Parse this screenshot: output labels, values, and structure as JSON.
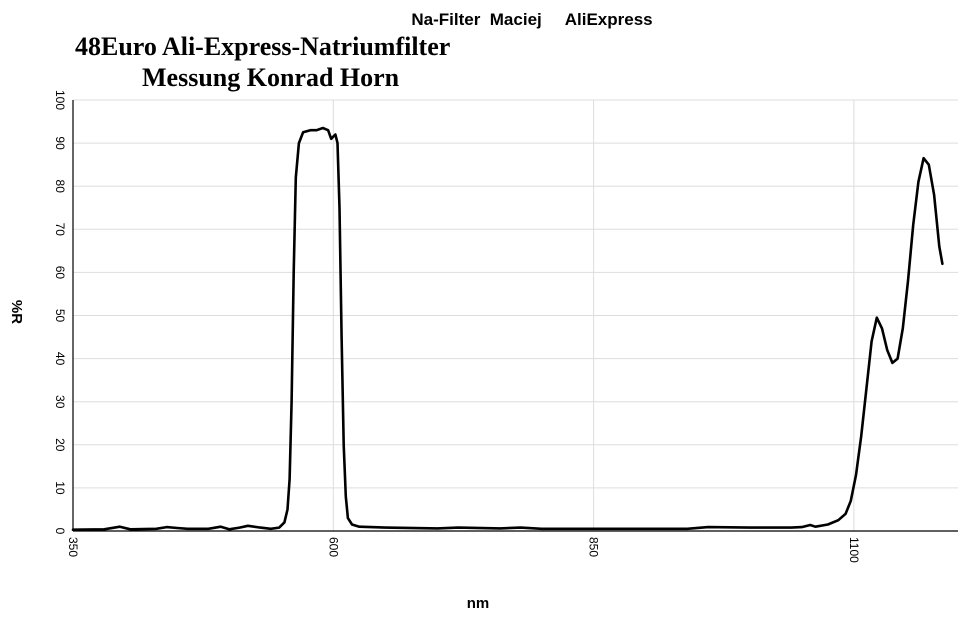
{
  "chart_data": {
    "type": "line",
    "title": "Na-Filter  Maciej     AliExpress",
    "subtitle_line1": "48Euro Ali-Express-Natriumfilter",
    "subtitle_line2": "Messung Konrad Horn",
    "xlabel": "nm",
    "ylabel": "%R",
    "xlim": [
      350,
      1200
    ],
    "ylim": [
      0,
      100
    ],
    "x_ticks": [
      350,
      600,
      850,
      1100
    ],
    "y_ticks": [
      0,
      10,
      20,
      30,
      40,
      50,
      60,
      70,
      80,
      90,
      100
    ],
    "grid": true,
    "series": [
      {
        "values": [
          [
            350,
            0.3
          ],
          [
            380,
            0.4
          ],
          [
            395,
            1.0
          ],
          [
            405,
            0.4
          ],
          [
            430,
            0.5
          ],
          [
            440,
            0.9
          ],
          [
            450,
            0.7
          ],
          [
            460,
            0.5
          ],
          [
            480,
            0.5
          ],
          [
            492,
            1.0
          ],
          [
            500,
            0.4
          ],
          [
            510,
            0.8
          ],
          [
            518,
            1.2
          ],
          [
            530,
            0.8
          ],
          [
            540,
            0.5
          ],
          [
            548,
            0.8
          ],
          [
            553,
            2
          ],
          [
            556,
            5
          ],
          [
            558,
            12
          ],
          [
            560,
            30
          ],
          [
            562,
            60
          ],
          [
            564,
            82
          ],
          [
            567,
            90
          ],
          [
            571,
            92.5
          ],
          [
            578,
            93
          ],
          [
            584,
            93
          ],
          [
            590,
            93.5
          ],
          [
            595,
            93
          ],
          [
            598,
            91
          ],
          [
            600,
            91.5
          ],
          [
            602,
            92
          ],
          [
            604,
            90
          ],
          [
            606,
            75
          ],
          [
            608,
            45
          ],
          [
            610,
            20
          ],
          [
            612,
            8
          ],
          [
            614,
            3
          ],
          [
            618,
            1.5
          ],
          [
            625,
            1.0
          ],
          [
            650,
            0.8
          ],
          [
            700,
            0.6
          ],
          [
            720,
            0.8
          ],
          [
            760,
            0.6
          ],
          [
            780,
            0.8
          ],
          [
            800,
            0.5
          ],
          [
            850,
            0.5
          ],
          [
            900,
            0.5
          ],
          [
            940,
            0.5
          ],
          [
            960,
            0.9
          ],
          [
            1000,
            0.8
          ],
          [
            1040,
            0.8
          ],
          [
            1050,
            0.9
          ],
          [
            1058,
            1.4
          ],
          [
            1063,
            1.0
          ],
          [
            1075,
            1.5
          ],
          [
            1085,
            2.5
          ],
          [
            1092,
            4
          ],
          [
            1097,
            7
          ],
          [
            1102,
            13
          ],
          [
            1107,
            22
          ],
          [
            1112,
            33
          ],
          [
            1117,
            44
          ],
          [
            1122,
            49.5
          ],
          [
            1127,
            47
          ],
          [
            1132,
            42
          ],
          [
            1137,
            39
          ],
          [
            1142,
            40
          ],
          [
            1147,
            47
          ],
          [
            1152,
            58
          ],
          [
            1157,
            71
          ],
          [
            1162,
            81
          ],
          [
            1167,
            86.5
          ],
          [
            1172,
            85
          ],
          [
            1177,
            78
          ],
          [
            1182,
            66
          ],
          [
            1185,
            62
          ]
        ],
        "color": "#000000"
      }
    ]
  }
}
